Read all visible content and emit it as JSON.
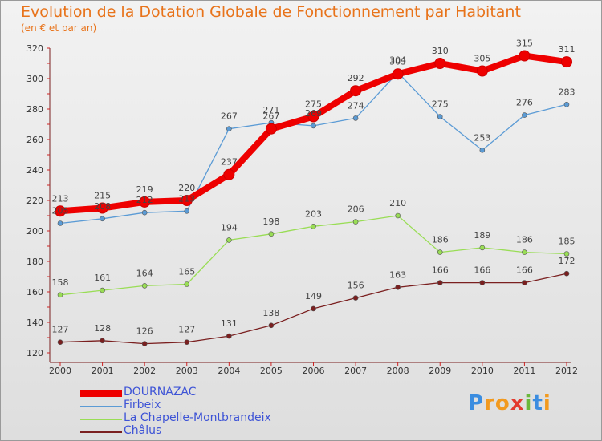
{
  "header": {
    "title": "Evolution de la Dotation Globale de Fonctionnement par Habitant",
    "subtitle": "(en € et par an)"
  },
  "logo": {
    "letters": [
      "P",
      "r",
      "o",
      "x",
      "i",
      "t",
      "i"
    ],
    "colors": [
      "#3b8de0",
      "#f29a1f",
      "#f29a1f",
      "#e33b2f",
      "#6ab83b",
      "#3b8de0",
      "#f29a1f"
    ]
  },
  "chart_data": {
    "type": "line",
    "x": [
      "2000",
      "2001",
      "2002",
      "2003",
      "2004",
      "2005",
      "2006",
      "2007",
      "2008",
      "2009",
      "2010",
      "2011",
      "2012"
    ],
    "ylim": [
      120,
      320
    ],
    "yticks": [
      120,
      140,
      160,
      180,
      200,
      220,
      240,
      260,
      280,
      300,
      320
    ],
    "grid": false,
    "legend_position": "bottom-left",
    "series": [
      {
        "name": "DOURNAZAC",
        "color": "#ee0000",
        "emphasis": true,
        "values": [
          213,
          215,
          219,
          220,
          237,
          267,
          275,
          292,
          303,
          310,
          305,
          315,
          311
        ]
      },
      {
        "name": "Firbeix",
        "color": "#5b9bd5",
        "emphasis": false,
        "values": [
          205,
          208,
          212,
          213,
          267,
          271,
          269,
          274,
          304,
          275,
          253,
          276,
          283
        ]
      },
      {
        "name": "La Chapelle-Montbrandeix",
        "color": "#99dd55",
        "emphasis": false,
        "values": [
          158,
          161,
          164,
          165,
          194,
          198,
          203,
          206,
          210,
          186,
          189,
          186,
          185
        ]
      },
      {
        "name": "Châlus",
        "color": "#7a1f1f",
        "emphasis": false,
        "values": [
          127,
          128,
          126,
          127,
          131,
          138,
          149,
          156,
          163,
          166,
          166,
          166,
          172
        ]
      }
    ]
  }
}
